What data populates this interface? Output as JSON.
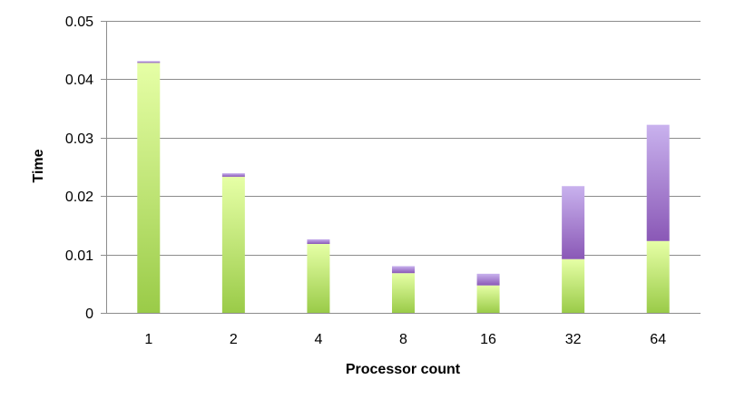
{
  "chart_data": {
    "type": "bar",
    "stacked": true,
    "title": "",
    "xlabel": "Processor count",
    "ylabel": "Time",
    "categories": [
      "1",
      "2",
      "4",
      "8",
      "16",
      "32",
      "64"
    ],
    "ylim": [
      0,
      0.05
    ],
    "yticks": [
      "0",
      "0.01",
      "0.02",
      "0.03",
      "0.04",
      "0.05"
    ],
    "grid": true,
    "legend": "none",
    "series": [
      {
        "values": [
          0.0428,
          0.0233,
          0.0118,
          0.0068,
          0.0047,
          0.0092,
          0.0123
        ],
        "color_light": "#e6ffa6",
        "color_dark": "#9acb48"
      },
      {
        "values": [
          0.0003,
          0.0006,
          0.0008,
          0.0012,
          0.002,
          0.0125,
          0.0199
        ],
        "color_light": "#c9b2ee",
        "color_dark": "#8a58b6"
      }
    ]
  }
}
